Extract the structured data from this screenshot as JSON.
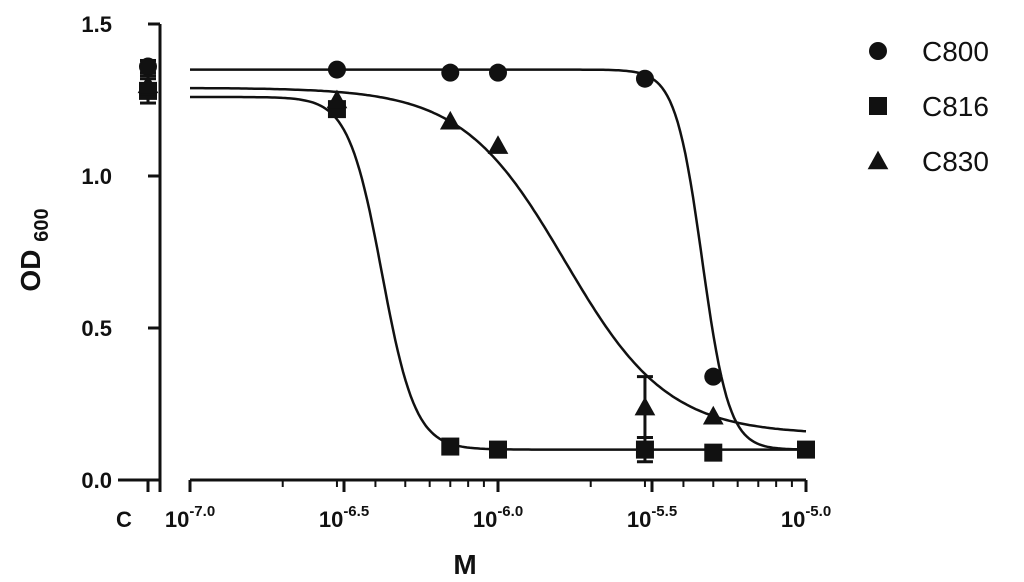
{
  "chart_data": {
    "type": "scatter",
    "title": "",
    "xlabel": "M",
    "ylabel": "OD",
    "ylabel_subscript": "600",
    "xscale": "log",
    "xlim": [
      1e-07,
      1e-05
    ],
    "ylim": [
      0.0,
      1.5
    ],
    "yticks": [
      0.0,
      0.5,
      1.0,
      1.5
    ],
    "ytick_labels": [
      "0.0",
      "0.5",
      "1.0",
      "1.5"
    ],
    "xticks": [
      {
        "value": 1e-07,
        "base": "10",
        "exp": "-7.0"
      },
      {
        "value": 3.1623e-07,
        "base": "10",
        "exp": "-6.5"
      },
      {
        "value": 1e-06,
        "base": "10",
        "exp": "-6.0"
      },
      {
        "value": 3.1623e-06,
        "base": "10",
        "exp": "-5.5"
      },
      {
        "value": 1e-05,
        "base": "10",
        "exp": "-5.0"
      }
    ],
    "control_label": "C",
    "grid": false,
    "legend_position": "top-right",
    "series": [
      {
        "name": "C800",
        "marker": "circle",
        "control": {
          "y": 1.36,
          "err": 0.02
        },
        "points": [
          {
            "x": 3e-07,
            "y": 1.35
          },
          {
            "x": 7e-07,
            "y": 1.34
          },
          {
            "x": 1e-06,
            "y": 1.34
          },
          {
            "x": 3e-06,
            "y": 1.32
          },
          {
            "x": 5e-06,
            "y": 0.34
          }
        ],
        "fit": {
          "top": 1.35,
          "bottom": 0.1,
          "ec50": 4.6e-06,
          "hill": 10
        }
      },
      {
        "name": "C816",
        "marker": "square",
        "control": {
          "y": 1.28,
          "err": 0.04
        },
        "points": [
          {
            "x": 3e-07,
            "y": 1.22
          },
          {
            "x": 7e-07,
            "y": 0.11
          },
          {
            "x": 1e-06,
            "y": 0.1
          },
          {
            "x": 3e-06,
            "y": 0.1,
            "err": 0.04
          },
          {
            "x": 5e-06,
            "y": 0.09
          },
          {
            "x": 1e-05,
            "y": 0.1
          }
        ],
        "fit": {
          "top": 1.26,
          "bottom": 0.1,
          "ec50": 4.2e-07,
          "hill": 8
        }
      },
      {
        "name": "C830",
        "marker": "triangle",
        "control": {
          "y": 1.3,
          "err": 0.03
        },
        "points": [
          {
            "x": 3e-07,
            "y": 1.25
          },
          {
            "x": 7e-07,
            "y": 1.18
          },
          {
            "x": 1e-06,
            "y": 1.1
          },
          {
            "x": 3e-06,
            "y": 0.24,
            "err": 0.1
          },
          {
            "x": 5e-06,
            "y": 0.21
          }
        ],
        "fit": {
          "top": 1.29,
          "bottom": 0.15,
          "ec50": 1.65e-06,
          "hill": 2.6
        }
      }
    ]
  }
}
